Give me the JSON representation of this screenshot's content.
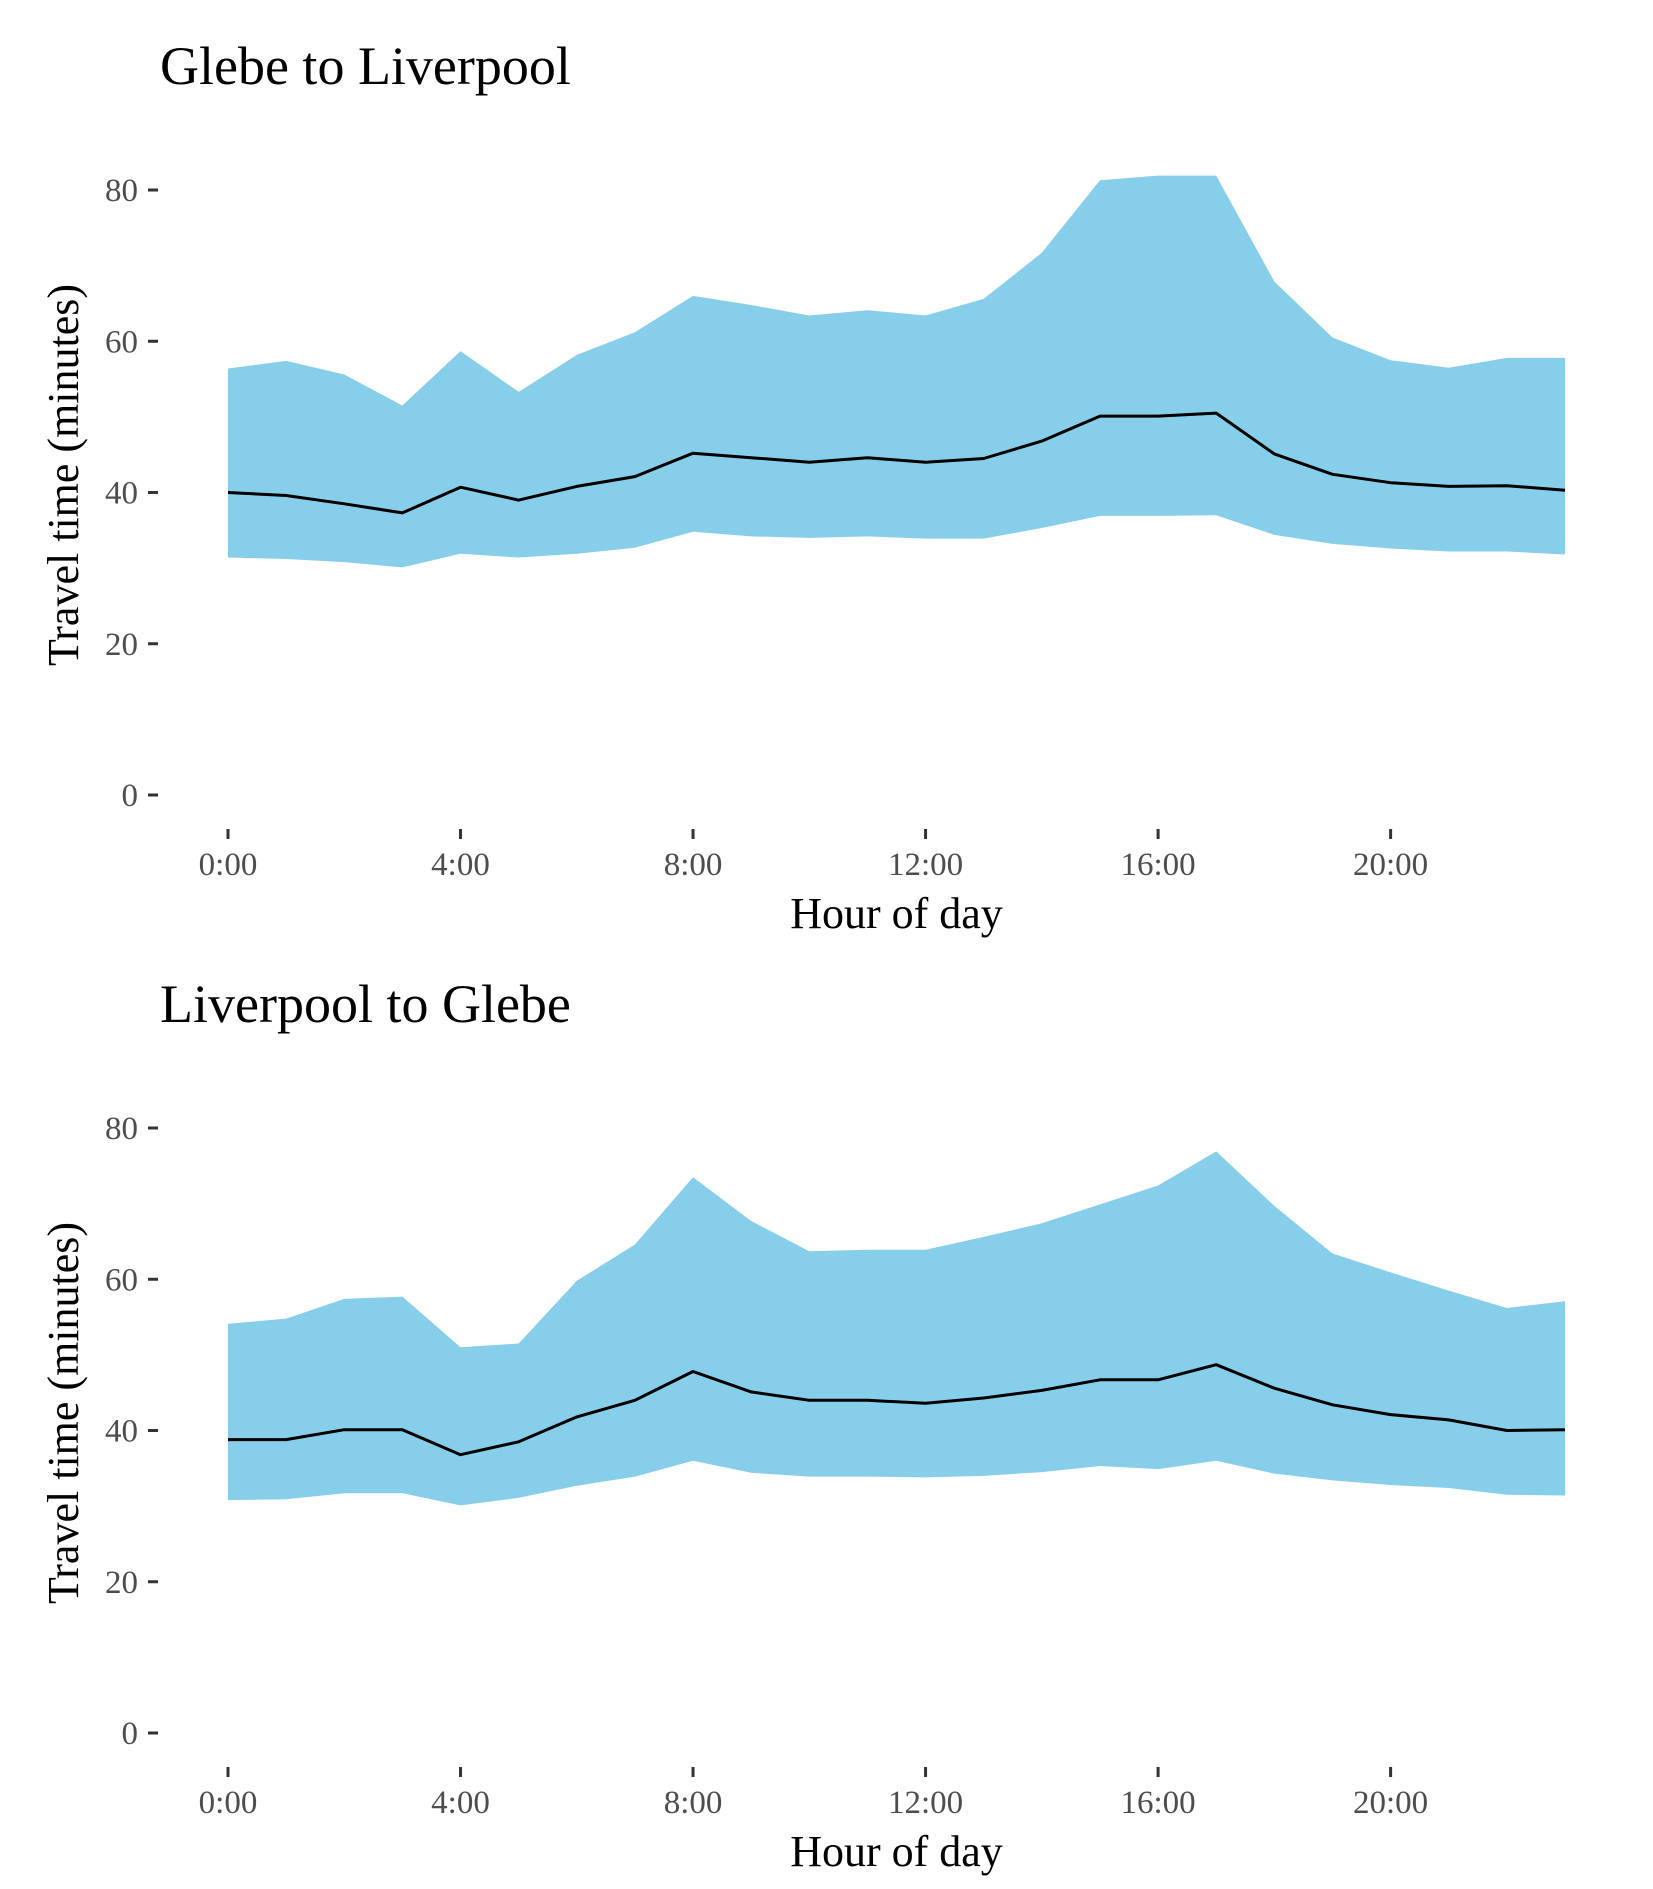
{
  "colors": {
    "band": "#87CEEB",
    "line": "#000000",
    "tick_text": "#4d4d4d"
  },
  "chart_data": [
    {
      "type": "area",
      "title": "Glebe to Liverpool",
      "xlabel": "Hour of day",
      "ylabel": "Travel time (minutes)",
      "xlim": [
        0,
        23
      ],
      "ylim": [
        0,
        90
      ],
      "grid": false,
      "x_ticks": [
        {
          "value": 0,
          "label": "0:00"
        },
        {
          "value": 4,
          "label": "4:00"
        },
        {
          "value": 8,
          "label": "8:00"
        },
        {
          "value": 12,
          "label": "12:00"
        },
        {
          "value": 16,
          "label": "16:00"
        },
        {
          "value": 20,
          "label": "20:00"
        }
      ],
      "y_ticks": [
        {
          "value": 0,
          "label": "0"
        },
        {
          "value": 20,
          "label": "20"
        },
        {
          "value": 40,
          "label": "40"
        },
        {
          "value": 60,
          "label": "60"
        },
        {
          "value": 80,
          "label": "80"
        }
      ],
      "x": [
        0,
        1,
        2,
        3,
        4,
        5,
        6,
        7,
        8,
        9,
        10,
        11,
        12,
        13,
        14,
        15,
        16,
        17,
        18,
        19,
        20,
        21,
        22,
        23
      ],
      "median": [
        40.0,
        39.6,
        38.5,
        37.3,
        40.7,
        39.0,
        40.8,
        42.1,
        45.2,
        44.6,
        44.0,
        44.6,
        44.0,
        44.5,
        46.8,
        50.1,
        50.1,
        50.5,
        45.1,
        42.4,
        41.3,
        40.8,
        40.9,
        40.3
      ],
      "lower": [
        31.4,
        31.2,
        30.8,
        30.1,
        31.9,
        31.4,
        31.9,
        32.7,
        34.8,
        34.2,
        34.0,
        34.2,
        33.9,
        33.9,
        35.3,
        36.9,
        36.9,
        37.0,
        34.4,
        33.2,
        32.6,
        32.2,
        32.2,
        31.8
      ],
      "upper": [
        56.4,
        57.4,
        55.6,
        51.5,
        58.7,
        53.3,
        58.2,
        61.2,
        66.0,
        64.8,
        63.4,
        64.1,
        63.4,
        65.6,
        71.7,
        81.3,
        81.9,
        81.9,
        67.9,
        60.5,
        57.5,
        56.5,
        57.8,
        57.8
      ]
    },
    {
      "type": "area",
      "title": "Liverpool to Glebe",
      "xlabel": "Hour of day",
      "ylabel": "Travel time (minutes)",
      "xlim": [
        0,
        23
      ],
      "ylim": [
        0,
        90
      ],
      "grid": false,
      "x_ticks": [
        {
          "value": 0,
          "label": "0:00"
        },
        {
          "value": 4,
          "label": "4:00"
        },
        {
          "value": 8,
          "label": "8:00"
        },
        {
          "value": 12,
          "label": "12:00"
        },
        {
          "value": 16,
          "label": "16:00"
        },
        {
          "value": 20,
          "label": "20:00"
        }
      ],
      "y_ticks": [
        {
          "value": 0,
          "label": "0"
        },
        {
          "value": 20,
          "label": "20"
        },
        {
          "value": 40,
          "label": "40"
        },
        {
          "value": 60,
          "label": "60"
        },
        {
          "value": 80,
          "label": "80"
        }
      ],
      "x": [
        0,
        1,
        2,
        3,
        4,
        5,
        6,
        7,
        8,
        9,
        10,
        11,
        12,
        13,
        14,
        15,
        16,
        17,
        18,
        19,
        20,
        21,
        22,
        23
      ],
      "median": [
        38.8,
        38.8,
        40.1,
        40.1,
        36.8,
        38.5,
        41.8,
        44.0,
        47.8,
        45.1,
        44.0,
        44.0,
        43.6,
        44.3,
        45.3,
        46.7,
        46.7,
        48.7,
        45.6,
        43.4,
        42.1,
        41.4,
        40.0,
        40.1
      ],
      "lower": [
        30.8,
        30.9,
        31.7,
        31.7,
        30.1,
        31.1,
        32.7,
        33.9,
        36.0,
        34.4,
        33.9,
        33.9,
        33.8,
        34.0,
        34.5,
        35.3,
        34.9,
        36.0,
        34.3,
        33.4,
        32.8,
        32.4,
        31.5,
        31.4
      ],
      "upper": [
        54.1,
        54.8,
        57.4,
        57.7,
        51.0,
        51.5,
        59.8,
        64.6,
        73.5,
        67.7,
        63.7,
        63.9,
        63.9,
        65.6,
        67.4,
        69.9,
        72.4,
        76.9,
        69.7,
        63.4,
        60.9,
        58.5,
        56.2,
        57.1
      ]
    }
  ]
}
